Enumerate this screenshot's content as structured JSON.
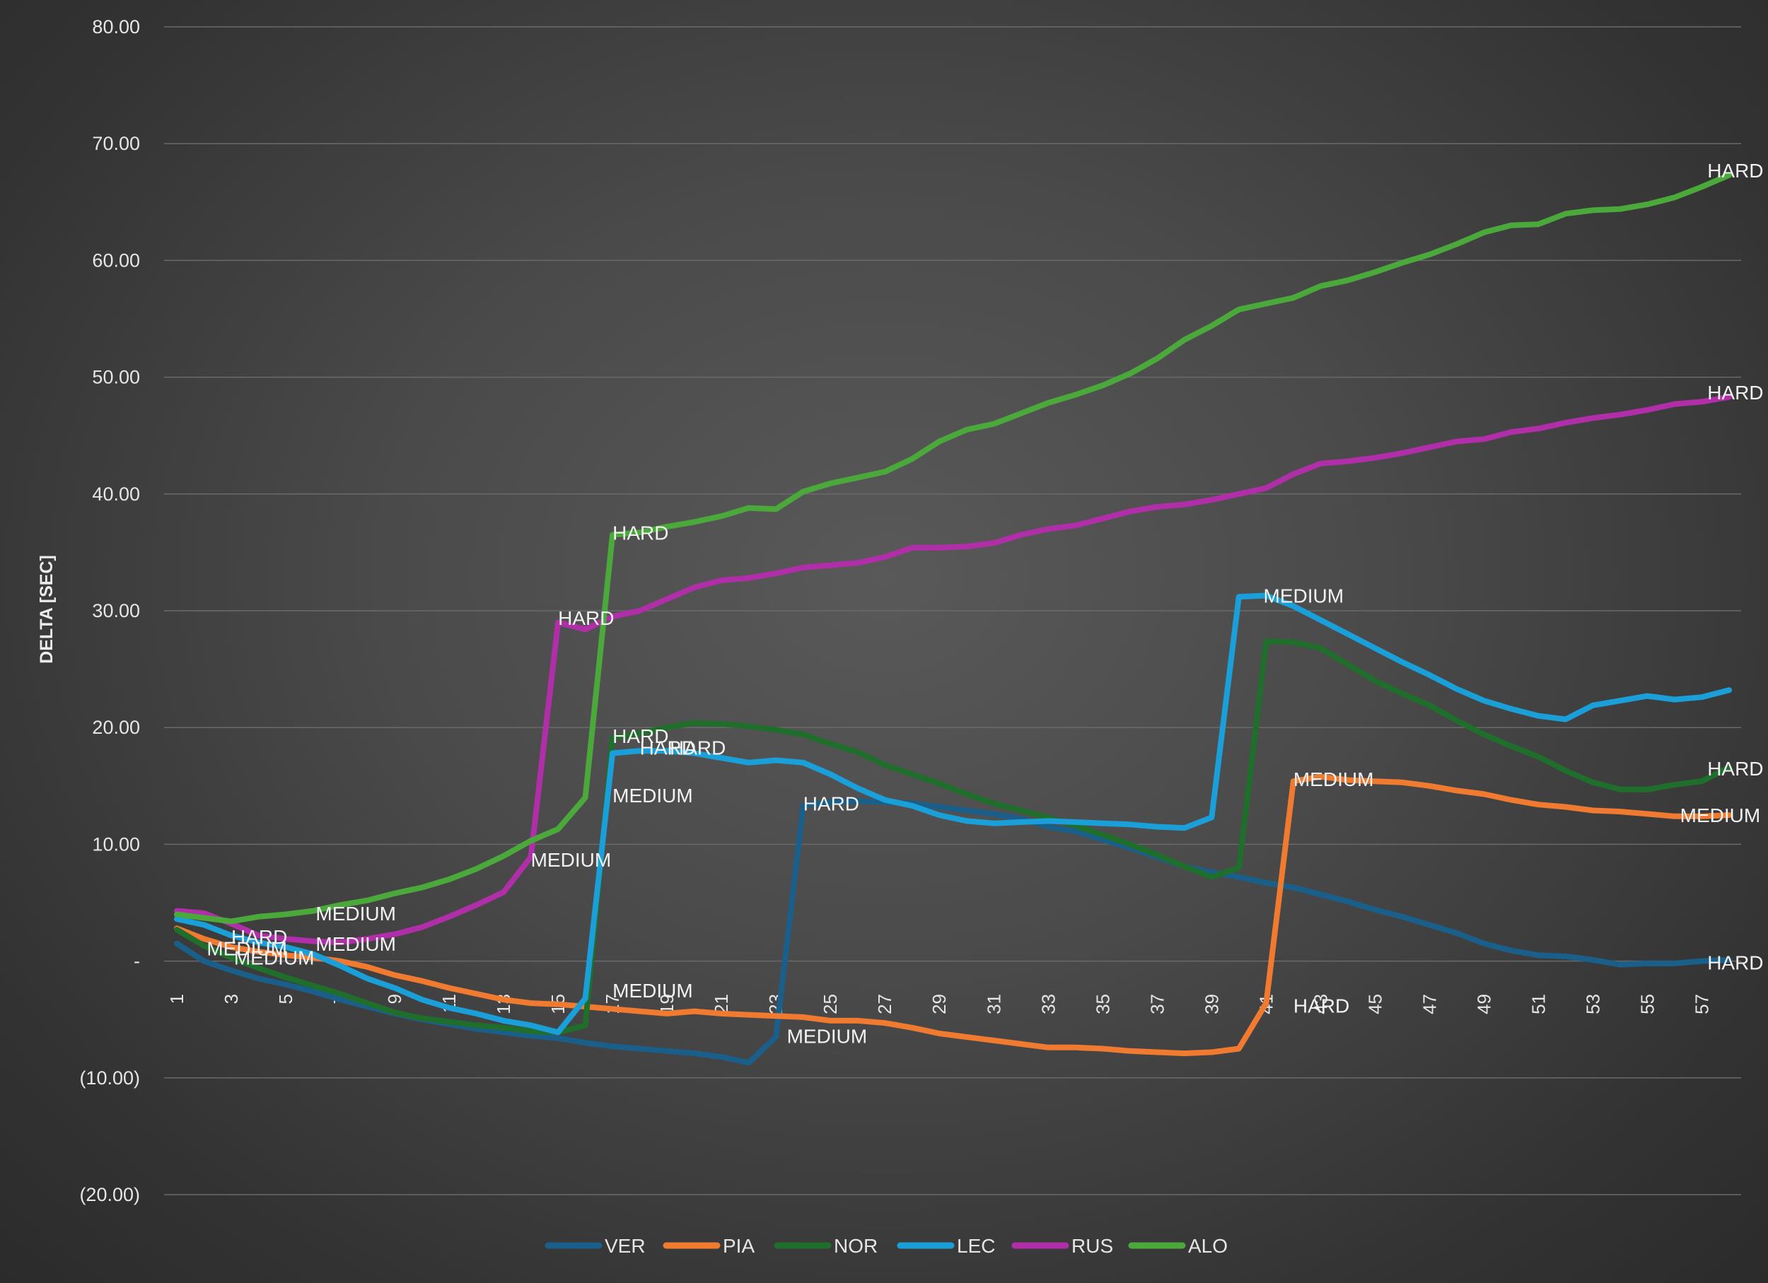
{
  "chart_data": {
    "type": "line",
    "title": "",
    "xlabel": "",
    "ylabel": "DELTA [SEC]",
    "ylim": [
      -20,
      80
    ],
    "y_ticks": [
      {
        "value": 80,
        "label": "80.00"
      },
      {
        "value": 70,
        "label": "70.00"
      },
      {
        "value": 60,
        "label": "60.00"
      },
      {
        "value": 50,
        "label": "50.00"
      },
      {
        "value": 40,
        "label": "40.00"
      },
      {
        "value": 30,
        "label": "30.00"
      },
      {
        "value": 20,
        "label": "20.00"
      },
      {
        "value": 10,
        "label": "10.00"
      },
      {
        "value": 0,
        "label": "-"
      },
      {
        "value": -10,
        "label": "(10.00)"
      },
      {
        "value": -20,
        "label": "(20.00)"
      }
    ],
    "x": [
      1,
      2,
      3,
      4,
      5,
      6,
      7,
      8,
      9,
      10,
      11,
      12,
      13,
      14,
      15,
      16,
      17,
      18,
      19,
      20,
      21,
      22,
      23,
      24,
      25,
      26,
      27,
      28,
      29,
      30,
      31,
      32,
      33,
      34,
      35,
      36,
      37,
      38,
      39,
      40,
      41,
      42,
      43,
      44,
      45,
      46,
      47,
      48,
      49,
      50,
      51,
      52,
      53,
      54,
      55,
      56,
      57,
      58
    ],
    "x_tick_labels": [
      "1",
      "3",
      "5",
      "7",
      "9",
      "11",
      "13",
      "15",
      "17",
      "19",
      "21",
      "23",
      "25",
      "27",
      "29",
      "31",
      "33",
      "35",
      "37",
      "39",
      "41",
      "43",
      "45",
      "47",
      "49",
      "51",
      "53",
      "55",
      "57"
    ],
    "grid": true,
    "legend_position": "bottom",
    "series": [
      {
        "name": "VER",
        "color": "#1a5f8a",
        "values": [
          1.5,
          0,
          -0.8,
          -1.5,
          -2,
          -2.6,
          -3.3,
          -3.9,
          -4.5,
          -5,
          -5.4,
          -5.8,
          -6.1,
          -6.4,
          -6.6,
          -7,
          -7.3,
          -7.5,
          -7.7,
          -7.9,
          -8.2,
          -8.7,
          -6.5,
          13.3,
          13.6,
          13.7,
          13.6,
          13.5,
          13.2,
          12.9,
          12.6,
          12.2,
          11.5,
          11.1,
          10.4,
          9.7,
          8.9,
          8.1,
          7.6,
          7.2,
          6.7,
          6.3,
          5.7,
          5.1,
          4.4,
          3.8,
          3.1,
          2.4,
          1.5,
          0.9,
          0.5,
          0.4,
          0.1,
          -0.3,
          -0.2,
          -0.2,
          0,
          0.1
        ]
      },
      {
        "name": "PIA",
        "color": "#f07a2f",
        "values": [
          2.8,
          1.9,
          1.2,
          0.8,
          0.5,
          0.3,
          0,
          -0.5,
          -1.2,
          -1.7,
          -2.3,
          -2.8,
          -3.3,
          -3.6,
          -3.7,
          -3.9,
          -4.1,
          -4.3,
          -4.5,
          -4.3,
          -4.5,
          -4.6,
          -4.7,
          -4.8,
          -5.1,
          -5.1,
          -5.3,
          -5.7,
          -6.2,
          -6.5,
          -6.8,
          -7.1,
          -7.4,
          -7.4,
          -7.5,
          -7.7,
          -7.8,
          -7.9,
          -7.8,
          -7.5,
          -3.6,
          15.4,
          15.8,
          15.5,
          15.4,
          15.3,
          15,
          14.6,
          14.3,
          13.8,
          13.4,
          13.2,
          12.9,
          12.8,
          12.6,
          12.4,
          12.4,
          12.5
        ]
      },
      {
        "name": "NOR",
        "color": "#1f6e2c",
        "values": [
          2.7,
          1.3,
          0.3,
          -0.6,
          -1.4,
          -2.1,
          -2.8,
          -3.6,
          -4.4,
          -4.9,
          -5.2,
          -5.5,
          -5.7,
          -6,
          -6.1,
          -5.5,
          19.1,
          19.5,
          20,
          20.4,
          20.3,
          20.1,
          19.8,
          19.4,
          18.6,
          17.9,
          16.8,
          16,
          15.2,
          14.3,
          13.5,
          12.9,
          12.3,
          11.6,
          10.8,
          10,
          9.1,
          8.1,
          7.2,
          8,
          27.4,
          27.3,
          26.8,
          25.4,
          24,
          22.9,
          21.9,
          20.6,
          19.4,
          18.4,
          17.5,
          16.3,
          15.3,
          14.7,
          14.7,
          15.1,
          15.4,
          16.6
        ]
      },
      {
        "name": "LEC",
        "color": "#1a9fd9",
        "values": [
          3.6,
          3.1,
          2.2,
          1.6,
          1.2,
          0.6,
          -0.4,
          -1.5,
          -2.3,
          -3.3,
          -4,
          -4.5,
          -5.1,
          -5.5,
          -6.1,
          -3.2,
          17.8,
          18,
          18,
          17.8,
          17.4,
          17,
          17.2,
          17,
          16,
          14.8,
          13.8,
          13.3,
          12.5,
          12,
          11.8,
          11.9,
          12,
          11.9,
          11.8,
          11.7,
          11.5,
          11.4,
          12.3,
          31.2,
          31.3,
          30.4,
          29.2,
          28,
          26.8,
          25.6,
          24.5,
          23.3,
          22.3,
          21.6,
          21,
          20.7,
          21.9,
          22.3,
          22.7,
          22.4,
          22.6,
          23.2
        ]
      },
      {
        "name": "RUS",
        "color": "#b02fa8",
        "values": [
          4.3,
          4.1,
          3.2,
          2.2,
          1.9,
          1.7,
          1.6,
          1.9,
          2.3,
          2.9,
          3.8,
          4.8,
          5.9,
          8.9,
          29,
          28.4,
          29.5,
          30,
          31,
          32,
          32.6,
          32.8,
          33.2,
          33.7,
          33.9,
          34.1,
          34.6,
          35.4,
          35.4,
          35.5,
          35.8,
          36.5,
          37,
          37.3,
          37.9,
          38.5,
          38.9,
          39.1,
          39.5,
          40,
          40.5,
          41.7,
          42.6,
          42.8,
          43.1,
          43.5,
          44,
          44.5,
          44.7,
          45.3,
          45.6,
          46.1,
          46.5,
          46.8,
          47.2,
          47.7,
          47.9,
          48.3
        ]
      },
      {
        "name": "ALO",
        "color": "#4aa93a",
        "values": [
          4,
          3.7,
          3.4,
          3.8,
          4,
          4.3,
          4.8,
          5.2,
          5.8,
          6.3,
          7,
          7.9,
          9,
          10.3,
          11.3,
          14,
          36.5,
          36.7,
          37.2,
          37.6,
          38.1,
          38.8,
          38.7,
          40.2,
          40.9,
          41.4,
          41.9,
          43,
          44.5,
          45.5,
          46,
          46.9,
          47.8,
          48.5,
          49.3,
          50.3,
          51.6,
          53.2,
          54.4,
          55.8,
          56.3,
          56.8,
          57.8,
          58.3,
          59,
          59.8,
          60.5,
          61.4,
          62.4,
          63,
          63.1,
          64,
          64.3,
          64.4,
          64.8,
          65.4,
          66.3,
          67.3
        ]
      }
    ],
    "annotations": [
      {
        "text": "MEDIUM",
        "x": 2.1,
        "y": 1.1
      },
      {
        "text": "HARD",
        "x": 3,
        "y": 2.1
      },
      {
        "text": "MEDIUM",
        "x": 3.1,
        "y": 0.3
      },
      {
        "text": "MEDIUM",
        "x": 6.1,
        "y": 1.5
      },
      {
        "text": "MEDIUM",
        "x": 6.1,
        "y": 4.1
      },
      {
        "text": "MEDIUM",
        "x": 14,
        "y": 8.7
      },
      {
        "text": "HARD",
        "x": 15,
        "y": 29.4
      },
      {
        "text": "HARD",
        "x": 17,
        "y": 36.7
      },
      {
        "text": "MEDIUM",
        "x": 17,
        "y": 14.2
      },
      {
        "text": "HARD",
        "x": 17,
        "y": 19.3
      },
      {
        "text": "HARD",
        "x": 18,
        "y": 18.3
      },
      {
        "text": "HARD",
        "x": 19.1,
        "y": 18.3
      },
      {
        "text": "MEDIUM",
        "x": 17,
        "y": -2.5
      },
      {
        "text": "HARD",
        "x": 24,
        "y": 13.5
      },
      {
        "text": "MEDIUM",
        "x": 23.4,
        "y": -6.4
      },
      {
        "text": "MEDIUM",
        "x": 40.9,
        "y": 31.3
      },
      {
        "text": "MEDIUM",
        "x": 42,
        "y": 15.6
      },
      {
        "text": "HARD",
        "x": 42,
        "y": -3.8
      },
      {
        "text": "HARD",
        "x": 57.2,
        "y": 67.7
      },
      {
        "text": "HARD",
        "x": 57.2,
        "y": 48.7
      },
      {
        "text": "HARD",
        "x": 57.2,
        "y": 16.5
      },
      {
        "text": "MEDIUM",
        "x": 56.2,
        "y": 12.5
      },
      {
        "text": "HARD",
        "x": 57.2,
        "y": -0.1
      }
    ]
  }
}
